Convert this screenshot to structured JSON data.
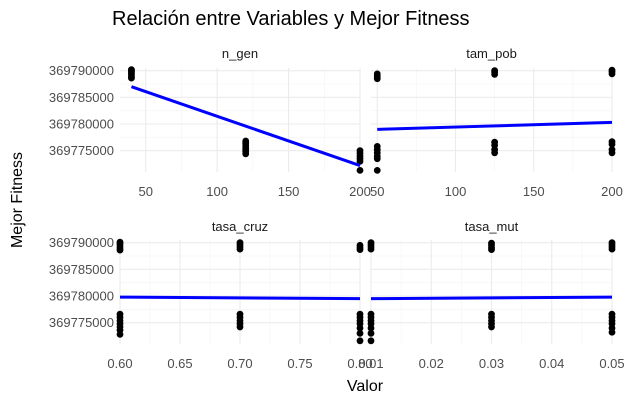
{
  "chart_data": {
    "type": "scatter",
    "title": "Relación entre Variables y Mejor Fitness",
    "xlabel": "Valor",
    "ylabel": "Mejor Fitness",
    "colors": {
      "points": "#000000",
      "trend": "#0000ff",
      "grid": "#ebebeb"
    },
    "grid": true,
    "ylim": [
      369771000,
      369790500
    ],
    "yticks": [
      369775000,
      369780000,
      369785000,
      369790000
    ],
    "ytick_labels": [
      "369775000",
      "369780000",
      "369785000",
      "369790000"
    ],
    "facets": [
      {
        "name": "n_gen",
        "xlim": [
          32,
          200
        ],
        "xticks": [
          50,
          100,
          150,
          200
        ],
        "xtick_labels": [
          "50",
          "100",
          "150",
          "200"
        ],
        "x_values": [
          40,
          120,
          200
        ],
        "y_clusters": [
          [
            369788600,
            369788900,
            369789200,
            369789500,
            369789800,
            369790000,
            369790200
          ],
          [
            369774400,
            369774800,
            369775200,
            369775600,
            369776000,
            369776400,
            369776800
          ],
          [
            369773000,
            369773500,
            369774000,
            369774500,
            369775000,
            369771300
          ]
        ],
        "trend": {
          "x": [
            40,
            200
          ],
          "y": [
            369787000,
            369772200
          ]
        }
      },
      {
        "name": "tam_pob",
        "xlim": [
          46,
          200
        ],
        "xticks": [
          50,
          100,
          150,
          200
        ],
        "xtick_labels": [
          "50",
          "100",
          "150",
          "200"
        ],
        "x_values": [
          50,
          125,
          200
        ],
        "y_clusters": [
          [
            369788500,
            369789000,
            369789400,
            369775800,
            369775200,
            369774600,
            369774000,
            369773500,
            369771300
          ],
          [
            369789300,
            369789700,
            369790000,
            369776600,
            369776000,
            369775200,
            369774600
          ],
          [
            369789400,
            369789800,
            369790100,
            369776700,
            369776200,
            369775200,
            369774600
          ]
        ],
        "trend": {
          "x": [
            50,
            200
          ],
          "y": [
            369779000,
            369780300
          ]
        }
      },
      {
        "name": "tasa_cruz",
        "xlim": [
          0.6,
          0.8
        ],
        "xticks": [
          0.6,
          0.65,
          0.7,
          0.75,
          0.8
        ],
        "xtick_labels": [
          "0.60",
          "0.65",
          "0.70",
          "0.75",
          "0.80"
        ],
        "x_values": [
          0.6,
          0.7,
          0.8
        ],
        "y_clusters": [
          [
            369788600,
            369789000,
            369789400,
            369789800,
            369790100,
            369776600,
            369776000,
            369775400,
            369774800,
            369774200,
            369773600,
            369772800
          ],
          [
            369788800,
            369789200,
            369789600,
            369790000,
            369776600,
            369776000,
            369775400,
            369774800,
            369774200
          ],
          [
            369788700,
            369789100,
            369789500,
            369776600,
            369776000,
            369775400,
            369774800,
            369774000,
            369773000,
            369771600
          ]
        ],
        "trend": {
          "x": [
            0.6,
            0.8
          ],
          "y": [
            369779800,
            369779500
          ]
        }
      },
      {
        "name": "tasa_mut",
        "xlim": [
          0.01,
          0.05
        ],
        "xticks": [
          0.01,
          0.02,
          0.03,
          0.04,
          0.05
        ],
        "xtick_labels": [
          "0.01",
          "0.02",
          "0.03",
          "0.04",
          "0.05"
        ],
        "x_values": [
          0.01,
          0.03,
          0.05
        ],
        "y_clusters": [
          [
            369788800,
            369789200,
            369789600,
            369790000,
            369776600,
            369776000,
            369775400,
            369774800,
            369774000,
            369773000,
            369771600
          ],
          [
            369788700,
            369789100,
            369789500,
            369789900,
            369776600,
            369776000,
            369775400,
            369774800,
            369774200
          ],
          [
            369788800,
            369789200,
            369789600,
            369790000,
            369776600,
            369776000,
            369775400,
            369774800,
            369774000,
            369773200
          ]
        ],
        "trend": {
          "x": [
            0.01,
            0.05
          ],
          "y": [
            369779500,
            369779800
          ]
        }
      }
    ]
  }
}
